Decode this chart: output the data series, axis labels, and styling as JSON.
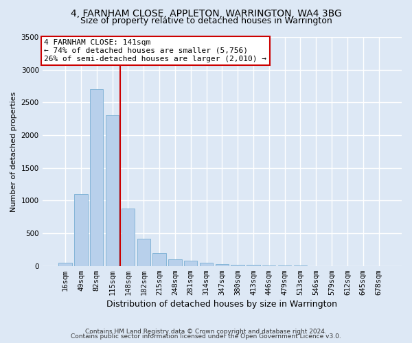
{
  "title1": "4, FARNHAM CLOSE, APPLETON, WARRINGTON, WA4 3BG",
  "title2": "Size of property relative to detached houses in Warrington",
  "xlabel": "Distribution of detached houses by size in Warrington",
  "ylabel": "Number of detached properties",
  "footnote1": "Contains HM Land Registry data © Crown copyright and database right 2024.",
  "footnote2": "Contains public sector information licensed under the Open Government Licence v3.0.",
  "categories": [
    "16sqm",
    "49sqm",
    "82sqm",
    "115sqm",
    "148sqm",
    "182sqm",
    "215sqm",
    "248sqm",
    "281sqm",
    "314sqm",
    "347sqm",
    "380sqm",
    "413sqm",
    "446sqm",
    "479sqm",
    "513sqm",
    "546sqm",
    "579sqm",
    "612sqm",
    "645sqm",
    "678sqm"
  ],
  "values": [
    50,
    1100,
    2700,
    2300,
    880,
    420,
    200,
    100,
    80,
    50,
    30,
    20,
    15,
    5,
    5,
    3,
    2,
    2,
    1,
    1,
    1
  ],
  "bar_color": "#b8d0eb",
  "bar_edge_color": "#7aafd4",
  "vline_color": "#cc0000",
  "vline_x_index": 3.5,
  "annotation_text": "4 FARNHAM CLOSE: 141sqm\n← 74% of detached houses are smaller (5,756)\n26% of semi-detached houses are larger (2,010) →",
  "annotation_box_facecolor": "#ffffff",
  "annotation_box_edgecolor": "#cc0000",
  "ylim": [
    0,
    3500
  ],
  "yticks": [
    0,
    500,
    1000,
    1500,
    2000,
    2500,
    3000,
    3500
  ],
  "bg_color": "#dde8f5",
  "plot_bg_color": "#dde8f5",
  "grid_color": "#ffffff",
  "title1_fontsize": 10,
  "title2_fontsize": 9,
  "xlabel_fontsize": 9,
  "ylabel_fontsize": 8,
  "tick_fontsize": 7.5,
  "annot_fontsize": 8,
  "footnote_fontsize": 6.5
}
